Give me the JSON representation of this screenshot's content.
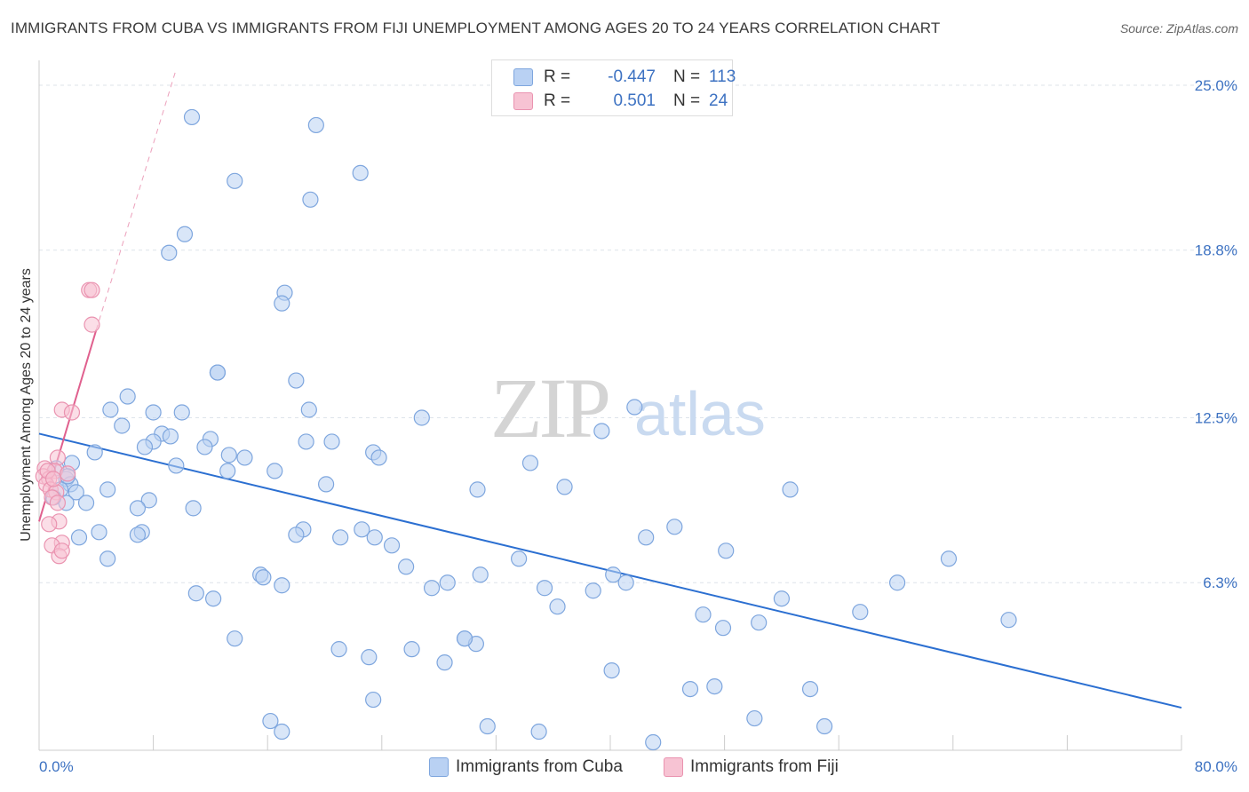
{
  "header": {
    "title": "IMMIGRANTS FROM CUBA VS IMMIGRANTS FROM FIJI UNEMPLOYMENT AMONG AGES 20 TO 24 YEARS CORRELATION CHART",
    "source": "Source: ZipAtlas.com"
  },
  "watermark": {
    "zip": "ZIP",
    "atlas": "atlas"
  },
  "colors": {
    "cuba_fill": "#b9d1f3",
    "cuba_stroke": "#7ea6de",
    "cuba_line": "#2b6fd1",
    "fiji_fill": "#f7c3d3",
    "fiji_stroke": "#ea93b0",
    "fiji_line": "#e0608e",
    "tick_text": "#3d72c2",
    "grid": "#dde3ea"
  },
  "legend": {
    "rows": [
      {
        "r_label": "R =",
        "r_value": "-0.447",
        "n_label": "N =",
        "n_value": "113"
      },
      {
        "r_label": "R =",
        "r_value": "0.501",
        "n_label": "N =",
        "n_value": "24"
      }
    ],
    "bottom": [
      "Immigrants from Cuba",
      "Immigrants from Fiji"
    ]
  },
  "chart_data": {
    "type": "scatter",
    "title": "IMMIGRANTS FROM CUBA VS IMMIGRANTS FROM FIJI UNEMPLOYMENT AMONG AGES 20 TO 24 YEARS CORRELATION CHART",
    "xlabel": "",
    "ylabel": "Unemployment Among Ages 20 to 24 years",
    "xlim": [
      0,
      80
    ],
    "ylim": [
      0,
      25.6
    ],
    "x_tick_labels": [
      "0.0%",
      "80.0%"
    ],
    "y_ticks": [
      6.3,
      12.5,
      18.8,
      25.0
    ],
    "y_tick_labels": [
      "6.3%",
      "12.5%",
      "18.8%",
      "25.0%"
    ],
    "series": [
      {
        "name": "Immigrants from Cuba",
        "r": -0.447,
        "n": 113,
        "trend": {
          "x": [
            0,
            80
          ],
          "y": [
            11.9,
            1.6
          ]
        },
        "points": [
          [
            10.7,
            23.8
          ],
          [
            19.4,
            23.5
          ],
          [
            13.7,
            21.4
          ],
          [
            22.5,
            21.7
          ],
          [
            19.0,
            20.7
          ],
          [
            10.2,
            19.4
          ],
          [
            9.1,
            18.7
          ],
          [
            17.2,
            17.2
          ],
          [
            17.0,
            16.8
          ],
          [
            12.5,
            14.2
          ],
          [
            18.0,
            13.9
          ],
          [
            6.2,
            13.3
          ],
          [
            5.0,
            12.8
          ],
          [
            8.0,
            12.7
          ],
          [
            10.0,
            12.7
          ],
          [
            18.9,
            12.8
          ],
          [
            26.8,
            12.5
          ],
          [
            41.7,
            12.9
          ],
          [
            39.4,
            12.0
          ],
          [
            5.8,
            12.2
          ],
          [
            8.6,
            11.9
          ],
          [
            9.2,
            11.8
          ],
          [
            8.0,
            11.6
          ],
          [
            12.0,
            11.7
          ],
          [
            18.7,
            11.6
          ],
          [
            20.5,
            11.6
          ],
          [
            7.4,
            11.4
          ],
          [
            11.6,
            11.4
          ],
          [
            13.3,
            11.1
          ],
          [
            14.4,
            11.0
          ],
          [
            23.4,
            11.2
          ],
          [
            23.8,
            11.0
          ],
          [
            34.4,
            10.8
          ],
          [
            3.9,
            11.2
          ],
          [
            1.2,
            10.6
          ],
          [
            2.3,
            10.8
          ],
          [
            9.6,
            10.7
          ],
          [
            13.2,
            10.5
          ],
          [
            16.5,
            10.5
          ],
          [
            1.9,
            10.2
          ],
          [
            2.2,
            10.0
          ],
          [
            20.1,
            10.0
          ],
          [
            30.7,
            9.8
          ],
          [
            36.8,
            9.9
          ],
          [
            52.6,
            9.8
          ],
          [
            1.5,
            9.8
          ],
          [
            2.6,
            9.7
          ],
          [
            4.8,
            9.8
          ],
          [
            1.9,
            9.3
          ],
          [
            3.3,
            9.3
          ],
          [
            7.7,
            9.4
          ],
          [
            6.9,
            9.1
          ],
          [
            10.8,
            9.1
          ],
          [
            1.0,
            9.5
          ],
          [
            7.2,
            8.2
          ],
          [
            4.2,
            8.2
          ],
          [
            18.5,
            8.3
          ],
          [
            22.6,
            8.3
          ],
          [
            6.9,
            8.1
          ],
          [
            18.0,
            8.1
          ],
          [
            21.1,
            8.0
          ],
          [
            23.5,
            8.0
          ],
          [
            42.5,
            8.0
          ],
          [
            44.5,
            8.4
          ],
          [
            2.8,
            8.0
          ],
          [
            24.7,
            7.7
          ],
          [
            48.1,
            7.5
          ],
          [
            4.8,
            7.2
          ],
          [
            33.6,
            7.2
          ],
          [
            63.7,
            7.2
          ],
          [
            25.7,
            6.9
          ],
          [
            15.5,
            6.6
          ],
          [
            15.7,
            6.5
          ],
          [
            30.9,
            6.6
          ],
          [
            40.2,
            6.6
          ],
          [
            17.0,
            6.2
          ],
          [
            27.5,
            6.1
          ],
          [
            28.6,
            6.3
          ],
          [
            35.4,
            6.1
          ],
          [
            38.8,
            6.0
          ],
          [
            41.1,
            6.3
          ],
          [
            60.1,
            6.3
          ],
          [
            11.0,
            5.9
          ],
          [
            12.2,
            5.7
          ],
          [
            36.3,
            5.4
          ],
          [
            52.0,
            5.7
          ],
          [
            46.5,
            5.1
          ],
          [
            47.9,
            4.6
          ],
          [
            50.4,
            4.8
          ],
          [
            57.5,
            5.2
          ],
          [
            67.9,
            4.9
          ],
          [
            13.7,
            4.2
          ],
          [
            21.0,
            3.8
          ],
          [
            23.1,
            3.5
          ],
          [
            26.1,
            3.8
          ],
          [
            28.4,
            3.3
          ],
          [
            29.8,
            4.2
          ],
          [
            30.6,
            4.0
          ],
          [
            40.1,
            3.0
          ],
          [
            45.6,
            2.3
          ],
          [
            47.3,
            2.4
          ],
          [
            54.0,
            2.3
          ],
          [
            23.4,
            1.9
          ],
          [
            16.2,
            1.1
          ],
          [
            17.0,
            0.7
          ],
          [
            31.4,
            0.9
          ],
          [
            35.0,
            0.7
          ],
          [
            43.0,
            0.3
          ],
          [
            50.1,
            1.2
          ],
          [
            55.0,
            0.9
          ],
          [
            12.5,
            14.2
          ],
          [
            29.8,
            4.2
          ],
          [
            2.0,
            10.3
          ]
        ]
      },
      {
        "name": "Immigrants from Fiji",
        "r": 0.501,
        "n": 24,
        "trend": {
          "x": [
            0,
            4.0
          ],
          "y": [
            8.6,
            15.8
          ]
        },
        "trend_dashed": {
          "x": [
            4.0,
            9.6
          ],
          "y": [
            15.8,
            25.6
          ]
        },
        "points": [
          [
            3.5,
            17.3
          ],
          [
            3.7,
            17.3
          ],
          [
            3.7,
            16.0
          ],
          [
            1.6,
            12.8
          ],
          [
            2.3,
            12.7
          ],
          [
            1.3,
            11.0
          ],
          [
            0.4,
            10.6
          ],
          [
            1.1,
            10.5
          ],
          [
            0.3,
            10.3
          ],
          [
            0.7,
            10.2
          ],
          [
            2.0,
            10.4
          ],
          [
            0.5,
            10.0
          ],
          [
            0.8,
            9.8
          ],
          [
            1.2,
            9.7
          ],
          [
            0.9,
            9.5
          ],
          [
            1.3,
            9.3
          ],
          [
            1.4,
            8.6
          ],
          [
            0.7,
            8.5
          ],
          [
            1.6,
            7.8
          ],
          [
            0.9,
            7.7
          ],
          [
            1.4,
            7.3
          ],
          [
            1.6,
            7.5
          ],
          [
            0.6,
            10.5
          ],
          [
            1.0,
            10.2
          ]
        ]
      }
    ]
  }
}
